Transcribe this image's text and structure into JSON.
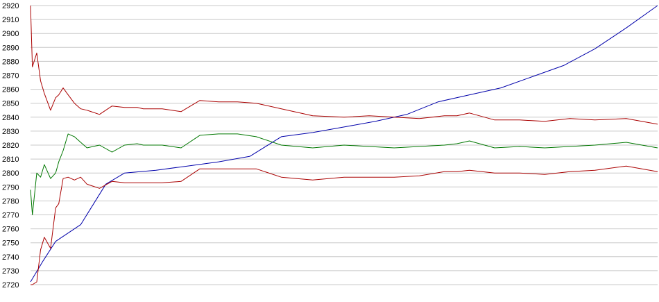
{
  "chart_data": {
    "type": "line",
    "title": "",
    "xlabel": "",
    "ylabel": "",
    "ylim": [
      2720,
      2920
    ],
    "yticks": [
      2720,
      2730,
      2740,
      2750,
      2760,
      2770,
      2780,
      2790,
      2800,
      2810,
      2820,
      2830,
      2840,
      2850,
      2860,
      2870,
      2880,
      2890,
      2900,
      2910,
      2920
    ],
    "grid": true,
    "legend": "none",
    "series": [
      {
        "color": "#0000aa",
        "x": [
          0,
          2,
          4,
          8,
          12,
          15,
          20,
          25,
          30,
          35,
          40,
          45,
          50,
          55,
          60,
          65,
          70,
          75,
          80,
          85,
          90,
          95,
          100
        ],
        "values": [
          2722,
          2737,
          2751,
          2763,
          2792,
          2800,
          2802,
          2805,
          2808,
          2812,
          2826,
          2829,
          2833,
          2837,
          2842,
          2851,
          2856,
          2861,
          2869,
          2877,
          2889,
          2904,
          2920
        ]
      },
      {
        "color": "#007700",
        "x": [
          0,
          0.3,
          1,
          1.6,
          2.2,
          3.2,
          4,
          4.5,
          5.2,
          6,
          7,
          8,
          9,
          11,
          13,
          15,
          17,
          18,
          21,
          24,
          27,
          30,
          33,
          36,
          40,
          45,
          50,
          54,
          58,
          62,
          66,
          68,
          70,
          74,
          78,
          82,
          86,
          90,
          95,
          100
        ],
        "values": [
          2788,
          2770,
          2800,
          2797,
          2806,
          2796,
          2800,
          2808,
          2816,
          2828,
          2826,
          2822,
          2818,
          2820,
          2815,
          2820,
          2821,
          2820,
          2820,
          2818,
          2827,
          2828,
          2828,
          2826,
          2820,
          2818,
          2820,
          2819,
          2818,
          2819,
          2820,
          2821,
          2823,
          2818,
          2819,
          2818,
          2819,
          2820,
          2822,
          2818
        ]
      },
      {
        "color": "#aa0000",
        "x": [
          0,
          0.3,
          1,
          1.6,
          2.2,
          3.2,
          4,
          4.5,
          5.2,
          6,
          7,
          8,
          9,
          11,
          13,
          15,
          17,
          18,
          21,
          24,
          27,
          30,
          33,
          36,
          40,
          45,
          50,
          54,
          58,
          62,
          66,
          68,
          70,
          74,
          78,
          82,
          86,
          90,
          95,
          100
        ],
        "values": [
          2920,
          2876,
          2886,
          2866,
          2857,
          2845,
          2854,
          2856,
          2861,
          2856,
          2850,
          2846,
          2845,
          2842,
          2848,
          2847,
          2847,
          2846,
          2846,
          2844,
          2852,
          2851,
          2851,
          2850,
          2846,
          2841,
          2840,
          2841,
          2840,
          2839,
          2841,
          2841,
          2843,
          2838,
          2838,
          2837,
          2839,
          2838,
          2839,
          2835
        ]
      },
      {
        "color": "#aa0000",
        "x": [
          0,
          0.3,
          1,
          1.6,
          2.2,
          3.2,
          4,
          4.5,
          5.2,
          6,
          7,
          8,
          9,
          11,
          13,
          15,
          17,
          18,
          21,
          24,
          27,
          30,
          33,
          36,
          40,
          45,
          50,
          54,
          58,
          62,
          66,
          68,
          70,
          74,
          78,
          82,
          86,
          90,
          95,
          100
        ],
        "values": [
          2720,
          2720,
          2722,
          2745,
          2754,
          2746,
          2775,
          2778,
          2796,
          2797,
          2795,
          2797,
          2792,
          2789,
          2794,
          2793,
          2793,
          2793,
          2793,
          2794,
          2803,
          2803,
          2803,
          2803,
          2797,
          2795,
          2797,
          2797,
          2797,
          2798,
          2801,
          2801,
          2802,
          2800,
          2800,
          2799,
          2801,
          2802,
          2805,
          2801
        ]
      }
    ]
  }
}
